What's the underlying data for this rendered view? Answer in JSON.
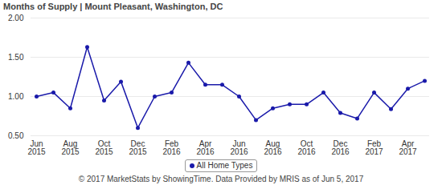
{
  "chart_data": {
    "type": "line",
    "title": "Months of Supply | Mount Pleasant, Washington, DC",
    "caption": "© 2017 MarketStats by ShowingTime. Data Provided by MRIS as of Jun 5, 2017",
    "categories": [
      "Jun 2015",
      null,
      "Aug 2015",
      null,
      "Oct 2015",
      null,
      "Dec 2015",
      null,
      "Feb 2016",
      null,
      "Apr 2016",
      null,
      "Jun 2016",
      null,
      "Aug 2016",
      null,
      "Oct 2016",
      null,
      "Dec 2016",
      null,
      "Feb 2017",
      null,
      "Apr 2017",
      null
    ],
    "series": [
      {
        "name": "All Home Types",
        "color": "#1a1aaa",
        "marker": "circle",
        "values": [
          1.0,
          1.05,
          0.85,
          1.63,
          0.95,
          1.19,
          0.6,
          1.0,
          1.05,
          1.43,
          1.15,
          1.15,
          1.0,
          0.7,
          0.85,
          0.9,
          0.9,
          1.05,
          0.79,
          0.72,
          1.05,
          0.84,
          1.1,
          1.2
        ]
      }
    ],
    "ylim": [
      0.5,
      2.0
    ],
    "yticks": [
      {
        "value": 0.5,
        "label": "0.50"
      },
      {
        "value": 1.0,
        "label": "1.00"
      },
      {
        "value": 1.5,
        "label": "1.50"
      },
      {
        "value": 2.0,
        "label": "2.00"
      }
    ],
    "grid": true,
    "legend": "bottom"
  }
}
